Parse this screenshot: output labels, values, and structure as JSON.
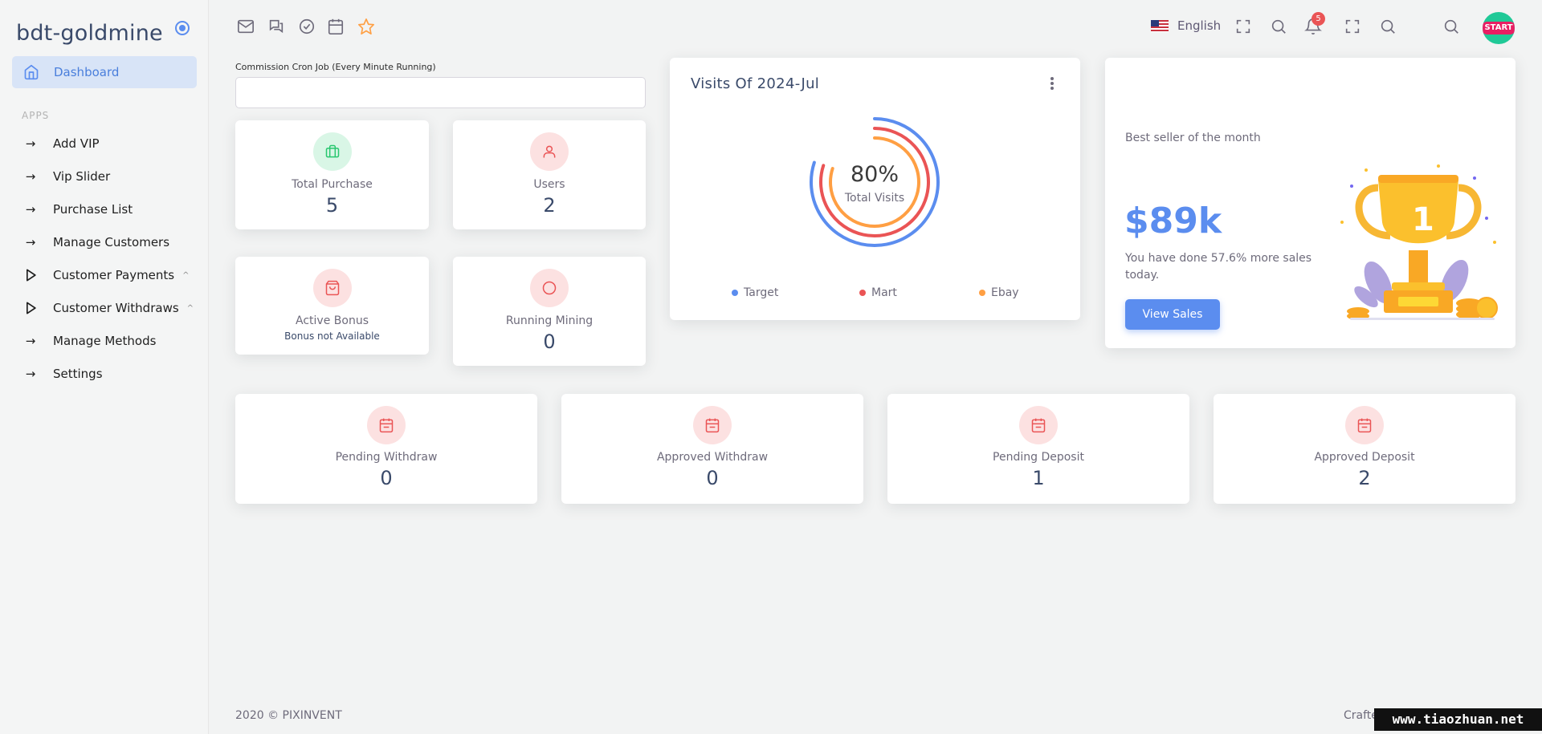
{
  "brand": {
    "name": "bdt-goldmine"
  },
  "sidebar": {
    "active": {
      "label": "Dashboard"
    },
    "section_label": "APPS",
    "items": [
      {
        "label": "Add VIP",
        "icon": "arrow-right-icon"
      },
      {
        "label": "Vip Slider",
        "icon": "arrow-right-icon"
      },
      {
        "label": "Purchase List",
        "icon": "arrow-right-icon"
      },
      {
        "label": "Manage Customers",
        "icon": "arrow-right-icon"
      },
      {
        "label": "Customer Payments",
        "icon": "play-outline-icon",
        "chevron": "^"
      },
      {
        "label": "Customer Withdraws",
        "icon": "play-outline-icon",
        "chevron": "^"
      },
      {
        "label": "Manage Methods",
        "icon": "arrow-right-icon"
      },
      {
        "label": "Settings",
        "icon": "arrow-right-icon"
      }
    ]
  },
  "topbar": {
    "language": "English",
    "notification_count": "5",
    "avatar_text": "START"
  },
  "cron": {
    "label": "Commission Cron Job (Every Minute Running)",
    "value": ""
  },
  "stats": {
    "total_purchase": {
      "title": "Total Purchase",
      "value": "5"
    },
    "users": {
      "title": "Users",
      "value": "2"
    },
    "active_bonus": {
      "title": "Active Bonus",
      "sub": "Bonus not Available"
    },
    "running_mining": {
      "title": "Running Mining",
      "value": "0"
    },
    "pending_withdraw": {
      "title": "Pending Withdraw",
      "value": "0"
    },
    "approved_withdraw": {
      "title": "Approved Withdraw",
      "value": "0"
    },
    "pending_deposit": {
      "title": "Pending Deposit",
      "value": "1"
    },
    "approved_deposit": {
      "title": "Approved Deposit",
      "value": "2"
    }
  },
  "visits": {
    "title": "Visits Of 2024-Jul",
    "center_value": "80%",
    "center_label": "Total Visits"
  },
  "chart_data": {
    "type": "radialBar",
    "title": "Visits Of 2024-Jul",
    "series": [
      {
        "name": "Target",
        "value": 80,
        "color": "#5b8def"
      },
      {
        "name": "Mart",
        "value": 80,
        "color": "#ea5455"
      },
      {
        "name": "Ebay",
        "value": 80,
        "color": "#ff9f43"
      }
    ],
    "legend_placement": "bottom"
  },
  "congrats": {
    "subtitle": "Best seller of the month",
    "amount": "$89k",
    "text": "You have done 57.6% more sales today.",
    "button": "View Sales"
  },
  "footer": {
    "copyright": "2020 © PIXINVENT",
    "right": "Crafte"
  },
  "watermark": "www.tiaozhuan.net"
}
